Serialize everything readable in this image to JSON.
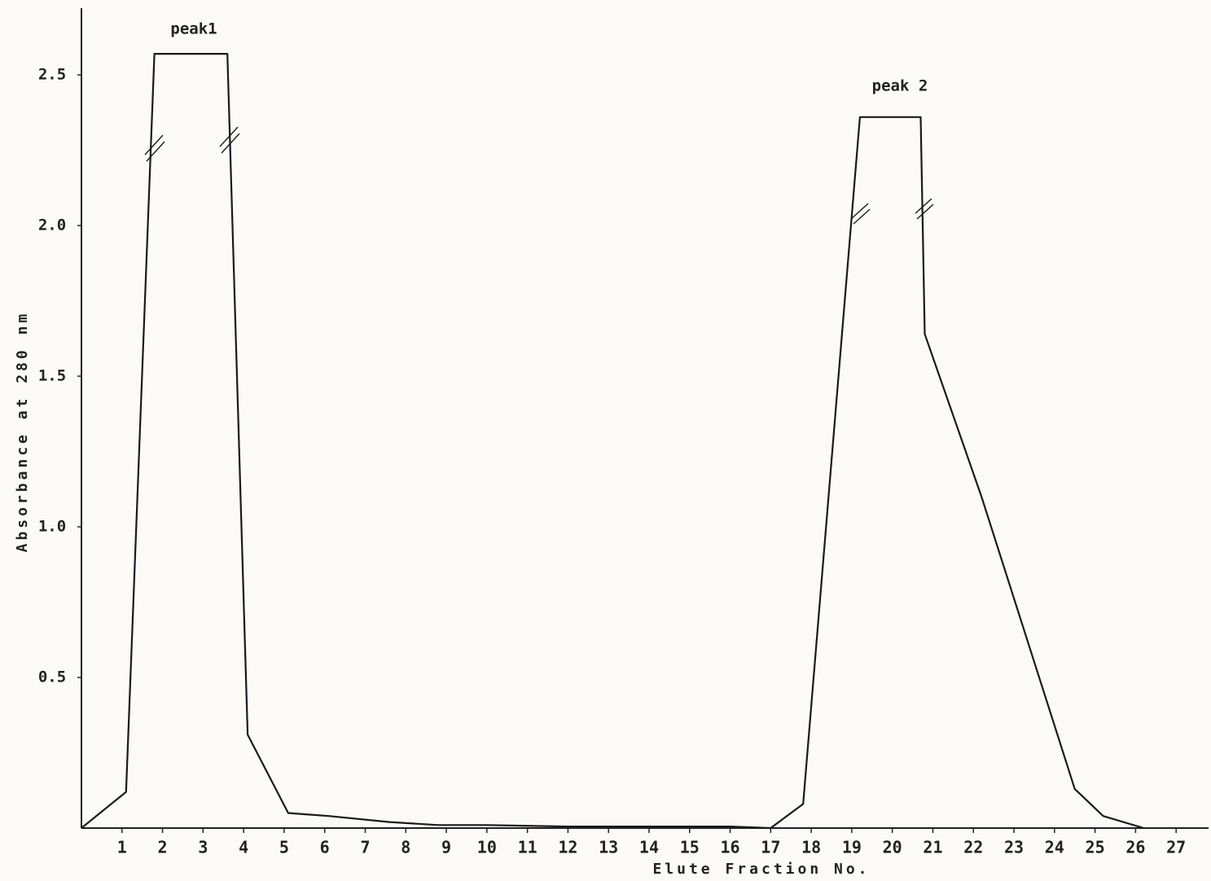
{
  "chart_data": {
    "type": "line",
    "x_label": "Elute Fraction No.",
    "y_label": "Absorbance at 280 nm",
    "annotations": [
      "peak1",
      "peak 2"
    ],
    "x": [
      0,
      1.1,
      1.8,
      3.6,
      4.1,
      5.1,
      6.1,
      7.6,
      8.8,
      10,
      12,
      14,
      16,
      17,
      17.8,
      19.2,
      20.7,
      20.8,
      22.2,
      24.5,
      25.2,
      26.2
    ],
    "values": [
      0,
      0.12,
      2.57,
      2.57,
      0.31,
      0.05,
      0.04,
      0.02,
      0.01,
      0.01,
      0.005,
      0.005,
      0.005,
      0,
      0.08,
      2.36,
      2.36,
      1.64,
      1.1,
      0.13,
      0.04,
      0
    ],
    "color": "#1a1a1a",
    "xlim": [
      0,
      27.8
    ],
    "ylim": [
      0,
      2.7
    ],
    "xticks": [
      1,
      2,
      3,
      4,
      5,
      6,
      7,
      8,
      9,
      10,
      11,
      12,
      13,
      14,
      15,
      16,
      17,
      18,
      19,
      20,
      21,
      22,
      23,
      24,
      25,
      26,
      27
    ],
    "yticks": [
      0.5,
      {
        "value": 1.0,
        "label": "1.0"
      },
      1.5,
      {
        "value": 2.0,
        "label": "2.0"
      },
      2.5
    ],
    "grid": false
  }
}
